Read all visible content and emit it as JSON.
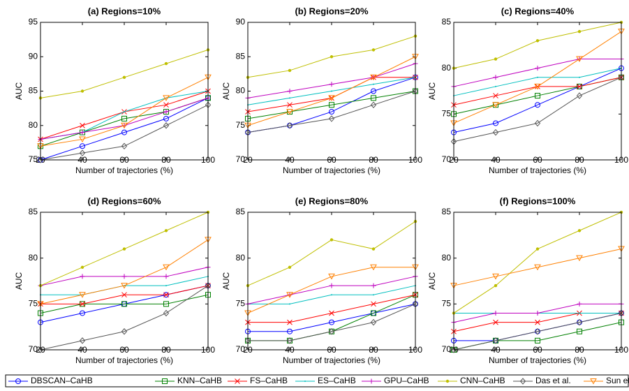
{
  "chart_data": [
    {
      "type": "line",
      "title": "(a) Regions=10%",
      "xlabel": "Number of trajectories (%)",
      "ylabel": "AUC",
      "x": [
        20,
        40,
        60,
        80,
        100
      ],
      "xlim": [
        20,
        100
      ],
      "xticks": [
        20,
        40,
        60,
        80,
        100
      ],
      "ylim": [
        75,
        95
      ],
      "yticks": [
        75,
        80,
        85,
        90,
        95
      ],
      "series": [
        {
          "name": "DBSCAN–CaHB",
          "color": "#0000ff",
          "marker": "circle",
          "values": [
            75,
            77,
            79,
            81,
            84
          ]
        },
        {
          "name": "KNN–CaHB",
          "color": "#008000",
          "marker": "square",
          "values": [
            77,
            79,
            81,
            82,
            84
          ]
        },
        {
          "name": "FS–CaHB",
          "color": "#ff0000",
          "marker": "x",
          "values": [
            78,
            80,
            82,
            83,
            85
          ]
        },
        {
          "name": "ES–CaHB",
          "color": "#00bfbf",
          "marker": "point",
          "values": [
            78,
            79,
            82,
            84,
            85
          ]
        },
        {
          "name": "GPU–CaHB",
          "color": "#bf00bf",
          "marker": "plus",
          "values": [
            78,
            79,
            80,
            82,
            84
          ]
        },
        {
          "name": "CNN–CaHB",
          "color": "#bfbf00",
          "marker": "dot",
          "values": [
            84,
            85,
            87,
            89,
            91
          ]
        },
        {
          "name": "Das et al.",
          "color": "#555555",
          "marker": "diamond",
          "values": [
            75,
            76,
            77,
            80,
            83
          ]
        },
        {
          "name": "Sun et al.",
          "color": "#ff8000",
          "marker": "triangle-down",
          "values": [
            77,
            78,
            80,
            84,
            87
          ]
        }
      ]
    },
    {
      "type": "line",
      "title": "(b) Regions=20%",
      "xlabel": "Number of trajectories (%)",
      "ylabel": "AUC",
      "x": [
        20,
        40,
        60,
        80,
        100
      ],
      "xlim": [
        20,
        100
      ],
      "xticks": [
        20,
        40,
        60,
        80,
        100
      ],
      "ylim": [
        70,
        90
      ],
      "yticks": [
        70,
        75,
        80,
        85,
        90
      ],
      "series": [
        {
          "name": "DBSCAN–CaHB",
          "color": "#0000ff",
          "marker": "circle",
          "values": [
            74,
            75,
            77,
            80,
            82
          ]
        },
        {
          "name": "KNN–CaHB",
          "color": "#008000",
          "marker": "square",
          "values": [
            76,
            77,
            78,
            79,
            80
          ]
        },
        {
          "name": "FS–CaHB",
          "color": "#ff0000",
          "marker": "x",
          "values": [
            77,
            78,
            79,
            82,
            82
          ]
        },
        {
          "name": "ES–CaHB",
          "color": "#00bfbf",
          "marker": "point",
          "values": [
            78,
            79,
            80,
            81,
            82
          ]
        },
        {
          "name": "GPU–CaHB",
          "color": "#bf00bf",
          "marker": "plus",
          "values": [
            79,
            80,
            81,
            82,
            84
          ]
        },
        {
          "name": "CNN–CaHB",
          "color": "#bfbf00",
          "marker": "dot",
          "values": [
            82,
            83,
            85,
            86,
            88
          ]
        },
        {
          "name": "Das et al.",
          "color": "#555555",
          "marker": "diamond",
          "values": [
            74,
            75,
            76,
            78,
            80
          ]
        },
        {
          "name": "Sun et al.",
          "color": "#ff8000",
          "marker": "triangle-down",
          "values": [
            75,
            77,
            79,
            82,
            85
          ]
        }
      ]
    },
    {
      "type": "line",
      "title": "(c) Regions=40%",
      "xlabel": "Number of trajectories (%)",
      "ylabel": "AUC",
      "x": [
        20,
        40,
        60,
        80,
        100
      ],
      "xlim": [
        20,
        100
      ],
      "xticks": [
        20,
        40,
        60,
        80,
        100
      ],
      "ylim": [
        70,
        85
      ],
      "yticks": [
        70,
        75,
        80,
        85
      ],
      "series": [
        {
          "name": "DBSCAN–CaHB",
          "color": "#0000ff",
          "marker": "circle",
          "values": [
            73,
            74,
            76,
            78,
            80
          ]
        },
        {
          "name": "KNN–CaHB",
          "color": "#008000",
          "marker": "square",
          "values": [
            75,
            76,
            77,
            78,
            79
          ]
        },
        {
          "name": "FS–CaHB",
          "color": "#ff0000",
          "marker": "x",
          "values": [
            76,
            77,
            78,
            78,
            79
          ]
        },
        {
          "name": "ES–CaHB",
          "color": "#00bfbf",
          "marker": "point",
          "values": [
            77,
            78,
            79,
            79,
            80
          ]
        },
        {
          "name": "GPU–CaHB",
          "color": "#bf00bf",
          "marker": "plus",
          "values": [
            78,
            79,
            80,
            81,
            81
          ]
        },
        {
          "name": "CNN–CaHB",
          "color": "#bfbf00",
          "marker": "dot",
          "values": [
            80,
            81,
            83,
            84,
            85
          ]
        },
        {
          "name": "Das et al.",
          "color": "#555555",
          "marker": "diamond",
          "values": [
            72,
            73,
            74,
            77,
            79
          ]
        },
        {
          "name": "Sun et al.",
          "color": "#ff8000",
          "marker": "triangle-down",
          "values": [
            74,
            76,
            78,
            81,
            84
          ]
        }
      ]
    },
    {
      "type": "line",
      "title": "(d) Regions=60%",
      "xlabel": "Number of trajectories (%)",
      "ylabel": "AUC",
      "x": [
        20,
        40,
        60,
        80,
        100
      ],
      "xlim": [
        20,
        100
      ],
      "xticks": [
        20,
        40,
        60,
        80,
        100
      ],
      "ylim": [
        70,
        85
      ],
      "yticks": [
        70,
        75,
        80,
        85
      ],
      "series": [
        {
          "name": "DBSCAN–CaHB",
          "color": "#0000ff",
          "marker": "circle",
          "values": [
            73,
            74,
            75,
            76,
            77
          ]
        },
        {
          "name": "KNN–CaHB",
          "color": "#008000",
          "marker": "square",
          "values": [
            74,
            75,
            75,
            75,
            76
          ]
        },
        {
          "name": "FS–CaHB",
          "color": "#ff0000",
          "marker": "x",
          "values": [
            75,
            75,
            76,
            76,
            77
          ]
        },
        {
          "name": "ES–CaHB",
          "color": "#00bfbf",
          "marker": "point",
          "values": [
            76,
            76,
            77,
            77,
            78
          ]
        },
        {
          "name": "GPU–CaHB",
          "color": "#bf00bf",
          "marker": "plus",
          "values": [
            77,
            78,
            78,
            78,
            79
          ]
        },
        {
          "name": "CNN–CaHB",
          "color": "#bfbf00",
          "marker": "dot",
          "values": [
            77,
            79,
            81,
            83,
            85
          ]
        },
        {
          "name": "Das et al.",
          "color": "#555555",
          "marker": "diamond",
          "values": [
            70,
            71,
            72,
            74,
            77
          ]
        },
        {
          "name": "Sun et al.",
          "color": "#ff8000",
          "marker": "triangle-down",
          "values": [
            75,
            76,
            77,
            79,
            82
          ]
        }
      ]
    },
    {
      "type": "line",
      "title": "(e) Regions=80%",
      "xlabel": "Number of trajectories (%)",
      "ylabel": "AUC",
      "x": [
        20,
        40,
        60,
        80,
        100
      ],
      "xlim": [
        20,
        100
      ],
      "xticks": [
        20,
        40,
        60,
        80,
        100
      ],
      "ylim": [
        70,
        85
      ],
      "yticks": [
        70,
        75,
        80,
        85
      ],
      "series": [
        {
          "name": "DBSCAN–CaHB",
          "color": "#0000ff",
          "marker": "circle",
          "values": [
            72,
            72,
            73,
            74,
            75
          ]
        },
        {
          "name": "KNN–CaHB",
          "color": "#008000",
          "marker": "square",
          "values": [
            71,
            71,
            72,
            74,
            76
          ]
        },
        {
          "name": "FS–CaHB",
          "color": "#ff0000",
          "marker": "x",
          "values": [
            73,
            73,
            74,
            75,
            76
          ]
        },
        {
          "name": "ES–CaHB",
          "color": "#00bfbf",
          "marker": "point",
          "values": [
            75,
            75,
            76,
            76,
            77
          ]
        },
        {
          "name": "GPU–CaHB",
          "color": "#bf00bf",
          "marker": "plus",
          "values": [
            75,
            76,
            77,
            77,
            78
          ]
        },
        {
          "name": "CNN–CaHB",
          "color": "#bfbf00",
          "marker": "dot",
          "values": [
            77,
            79,
            82,
            81,
            84
          ]
        },
        {
          "name": "Das et al.",
          "color": "#555555",
          "marker": "diamond",
          "values": [
            71,
            71,
            72,
            73,
            75
          ]
        },
        {
          "name": "Sun et al.",
          "color": "#ff8000",
          "marker": "triangle-down",
          "values": [
            74,
            76,
            78,
            79,
            79
          ]
        }
      ]
    },
    {
      "type": "line",
      "title": "(f) Regions=100%",
      "xlabel": "Number of trajectories (%)",
      "ylabel": "AUC",
      "x": [
        20,
        40,
        60,
        80,
        100
      ],
      "xlim": [
        20,
        100
      ],
      "xticks": [
        20,
        40,
        60,
        80,
        100
      ],
      "ylim": [
        70,
        85
      ],
      "yticks": [
        70,
        75,
        80,
        85
      ],
      "series": [
        {
          "name": "DBSCAN–CaHB",
          "color": "#0000ff",
          "marker": "circle",
          "values": [
            71,
            71,
            72,
            73,
            74
          ]
        },
        {
          "name": "KNN–CaHB",
          "color": "#008000",
          "marker": "square",
          "values": [
            70,
            71,
            71,
            72,
            73
          ]
        },
        {
          "name": "FS–CaHB",
          "color": "#ff0000",
          "marker": "x",
          "values": [
            72,
            73,
            73,
            74,
            74
          ]
        },
        {
          "name": "ES–CaHB",
          "color": "#00bfbf",
          "marker": "point",
          "values": [
            74,
            74,
            74,
            74,
            74
          ]
        },
        {
          "name": "GPU–CaHB",
          "color": "#bf00bf",
          "marker": "plus",
          "values": [
            73,
            74,
            74,
            75,
            75
          ]
        },
        {
          "name": "CNN–CaHB",
          "color": "#bfbf00",
          "marker": "dot",
          "values": [
            74,
            77,
            81,
            83,
            85
          ]
        },
        {
          "name": "Das et al.",
          "color": "#555555",
          "marker": "diamond",
          "values": [
            70,
            71,
            72,
            73,
            74
          ]
        },
        {
          "name": "Sun et al.",
          "color": "#ff8000",
          "marker": "triangle-down",
          "values": [
            77,
            78,
            79,
            80,
            81
          ]
        }
      ]
    }
  ]
}
